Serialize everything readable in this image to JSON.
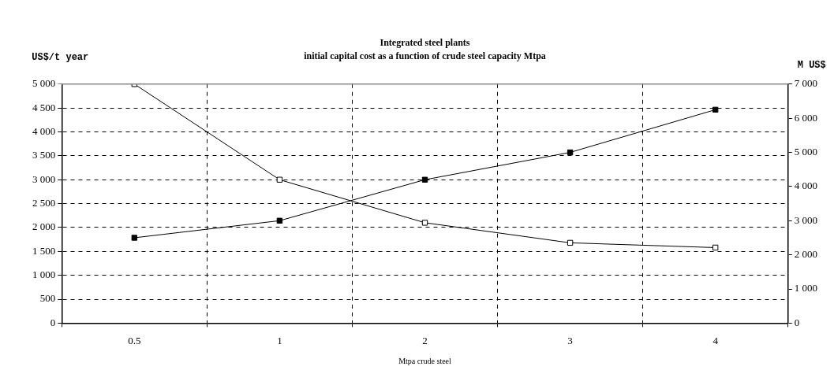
{
  "chart_data": {
    "type": "line",
    "title": "Integrated steel plants",
    "subtitle": "initial capital cost as a function of crude steel capacity Mtpa",
    "xlabel": "Mtpa crude steel",
    "ylabel": "US$/t year",
    "y2label": "M US$",
    "categories": [
      "0.5",
      "1",
      "2",
      "3",
      "4"
    ],
    "series": [
      {
        "color": "#000000",
        "values": [
          5000,
          3000,
          2100,
          1680,
          1580
        ]
      },
      {
        "color": "#000000",
        "values": [
          2500,
          3000,
          4200,
          5000,
          6250
        ],
        "axis": "y2"
      }
    ],
    "ylim": [
      0,
      5000
    ],
    "yticks": [
      0,
      500,
      {
        "value": 1000,
        "label": "1 000"
      },
      {
        "value": 1500,
        "label": "1 500"
      },
      {
        "value": 2000,
        "label": "2 000"
      },
      {
        "value": 2500,
        "label": "2 500"
      },
      {
        "value": 3000,
        "label": "3 000"
      },
      {
        "value": 3500,
        "label": "3 500"
      },
      {
        "value": 4000,
        "label": "4 000"
      },
      {
        "value": 4500,
        "label": "4 500"
      },
      {
        "value": 5000,
        "label": "5 000"
      }
    ],
    "y2lim": [
      0,
      7000
    ],
    "y2ticks": [
      0,
      {
        "value": 1000,
        "label": "1 000"
      },
      {
        "value": 2000,
        "label": "2 000"
      },
      {
        "value": 3000,
        "label": "3 000"
      },
      {
        "value": 4000,
        "label": "4 000"
      },
      {
        "value": 5000,
        "label": "5 000"
      },
      {
        "value": 6000,
        "label": "6 000"
      },
      {
        "value": 7000,
        "label": "7 000"
      }
    ],
    "grid": true,
    "legend": false,
    "marker": "square",
    "line_style": "solid"
  }
}
